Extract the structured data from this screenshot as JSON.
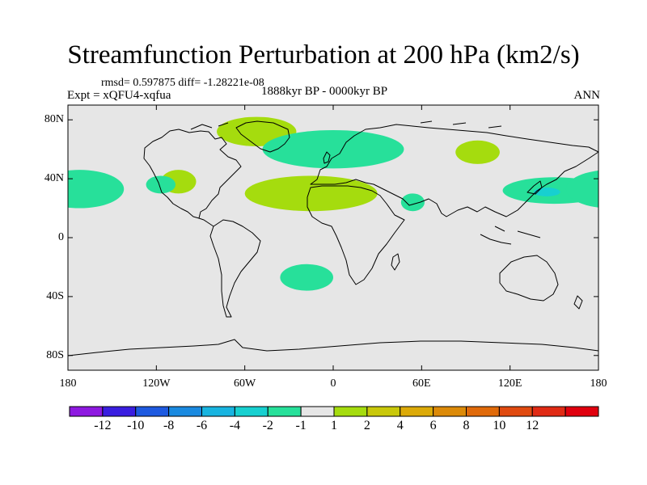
{
  "title": "Streamfunction Perturbation at 200 hPa (km2/s)",
  "stats_line": "rmsd= 0.597875 diff= -1.28221e-08",
  "left_label": "Expt = xQFU4-xqfua",
  "center_label": "1888kyr BP - 0000kyr BP",
  "right_label": "ANN",
  "map": {
    "lat_ticks": [
      "80N",
      "40N",
      "0",
      "40S",
      "80S"
    ],
    "lon_ticks": [
      "180",
      "120W",
      "60W",
      "0",
      "60E",
      "120E",
      "180"
    ],
    "lat_values": [
      80,
      40,
      0,
      -40,
      -80
    ],
    "lon_values": [
      -180,
      -120,
      -60,
      0,
      60,
      120,
      180
    ],
    "lat_range": [
      -90,
      90
    ],
    "lon_range": [
      -180,
      180
    ],
    "background_color": "#e6e6e6",
    "anomalies": [
      {
        "name": "greenland-positive",
        "category": "1 to 2",
        "color": "#a5dc0e",
        "center": [
          -52,
          72
        ],
        "radii": [
          27,
          10
        ]
      },
      {
        "name": "west-russia-positive",
        "category": "1 to 2",
        "color": "#a5dc0e",
        "center": [
          98,
          58
        ],
        "radii": [
          15,
          8
        ]
      },
      {
        "name": "north-atlantic-positive",
        "category": "1 to 2",
        "color": "#a5dc0e",
        "center": [
          -15,
          30
        ],
        "radii": [
          45,
          12
        ]
      },
      {
        "name": "pacific-mexico-positive",
        "category": "1 to 2",
        "color": "#a5dc0e",
        "center": [
          -105,
          38
        ],
        "radii": [
          12,
          8
        ]
      },
      {
        "name": "scandinavia-negative",
        "category": "-2 to -1",
        "color": "#27e09a",
        "center": [
          0,
          60
        ],
        "radii": [
          48,
          13
        ]
      },
      {
        "name": "north-pacific-negative",
        "category": "-2 to -1",
        "color": "#27e09a",
        "center": [
          -172,
          33
        ],
        "radii": [
          30,
          13
        ]
      },
      {
        "name": "caribbean-negative",
        "category": "-2 to -1",
        "color": "#27e09a",
        "center": [
          -117,
          36
        ],
        "radii": [
          10,
          6
        ]
      },
      {
        "name": "arabia-negative",
        "category": "-2 to -1",
        "color": "#27e09a",
        "center": [
          54,
          24
        ],
        "radii": [
          8,
          6
        ]
      },
      {
        "name": "east-asia-negative",
        "category": "-2 to -1",
        "color": "#27e09a",
        "center": [
          150,
          32
        ],
        "radii": [
          35,
          9
        ]
      },
      {
        "name": "south-atlantic-negative",
        "category": "-2 to -1",
        "color": "#27e09a",
        "center": [
          -18,
          -27
        ],
        "radii": [
          18,
          9
        ]
      },
      {
        "name": "japan-negative-core",
        "category": "-4 to -2",
        "color": "#17d0d0",
        "center": [
          145,
          31
        ],
        "radii": [
          9,
          3
        ]
      }
    ]
  },
  "colorbar": {
    "colors": [
      "#8e19e0",
      "#3a1ee0",
      "#1e5ae0",
      "#1a8ae0",
      "#18b4e0",
      "#17d0d0",
      "#27e09a",
      "#e6e6e6",
      "#a5dc0e",
      "#c9c80a",
      "#dcaa08",
      "#dc8a08",
      "#e06a0a",
      "#e04a10",
      "#e02a14",
      "#e0000e"
    ],
    "labels": [
      "-12",
      "-10",
      "-8",
      "-6",
      "-4",
      "-2",
      "-1",
      "1",
      "2",
      "4",
      "6",
      "8",
      "10",
      "12"
    ]
  }
}
